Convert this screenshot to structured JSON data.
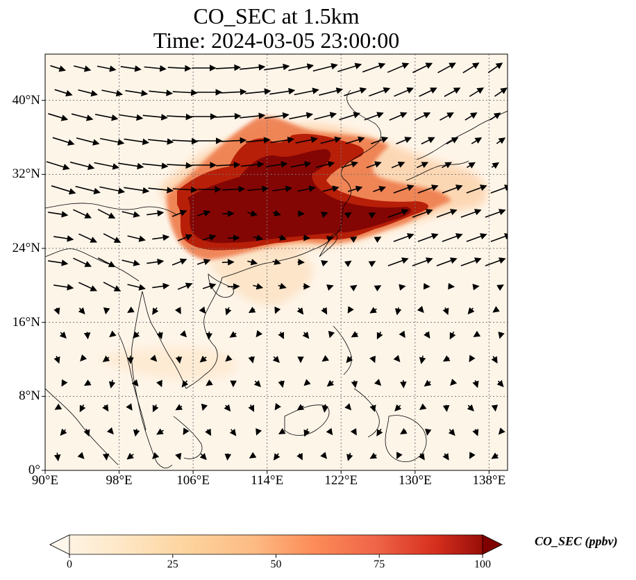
{
  "title_line1": "CO_SEC at 1.5km",
  "title_line2": "Time: 2024-03-05 23:00:00",
  "map": {
    "lon_range": [
      90,
      140
    ],
    "lat_range": [
      0,
      45
    ],
    "lat_ticks": [
      {
        "value": 0,
        "label": "0°"
      },
      {
        "value": 8,
        "label": "8°N"
      },
      {
        "value": 16,
        "label": "16°N"
      },
      {
        "value": 24,
        "label": "24°N"
      },
      {
        "value": 32,
        "label": "32°N"
      },
      {
        "value": 40,
        "label": "40°N"
      }
    ],
    "lon_ticks": [
      {
        "value": 90,
        "label": "90°E"
      },
      {
        "value": 98,
        "label": "98°E"
      },
      {
        "value": 106,
        "label": "106°E"
      },
      {
        "value": 114,
        "label": "114°E"
      },
      {
        "value": 122,
        "label": "122°E"
      },
      {
        "value": 130,
        "label": "130°E"
      },
      {
        "value": 138,
        "label": "138°E"
      }
    ],
    "gridlines": true,
    "colormap": "OrRd",
    "background_color": "#fef5e9",
    "plume_color_high": "#7f0000"
  },
  "colorbar": {
    "label": "CO_SEC (ppbv)",
    "min": 0,
    "max": 100,
    "ticks": [
      {
        "value": 0,
        "label": "0"
      },
      {
        "value": 25,
        "label": "25"
      },
      {
        "value": 50,
        "label": "50"
      },
      {
        "value": 75,
        "label": "75"
      },
      {
        "value": 100,
        "label": "100"
      }
    ],
    "extend": "both"
  }
}
